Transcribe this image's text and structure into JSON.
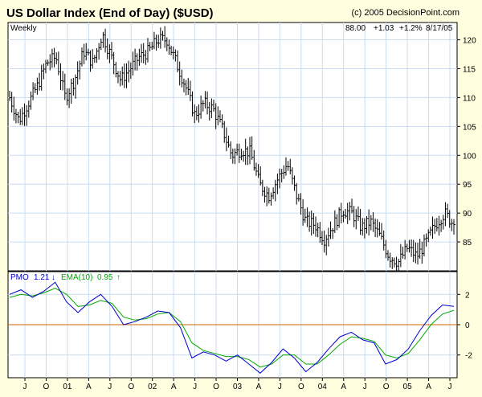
{
  "header": {
    "title": "US Dollar Index (End of Day) ($USD)",
    "credit": "(c) 2005 DecisionPoint.com"
  },
  "price_panel": {
    "period_label": "Weekly",
    "last": "88.00",
    "change": "+1.03",
    "change_pct": "+1.2%",
    "date": "8/17/05"
  },
  "pmo_panel": {
    "pmo_label": "PMO",
    "pmo_value": "1.21",
    "pmo_arrow": "↓",
    "ema_label": "EMA(10)",
    "ema_value": "0.95",
    "ema_arrow": "↑"
  },
  "colors": {
    "background": "#ffffe0",
    "plot_bg": "#ffffff",
    "grid": "#c8dcf0",
    "bars": "#000000",
    "pmo": "#0000cc",
    "ema": "#00aa00",
    "zero": "#cc6600",
    "arrow_down": "#0000cc",
    "arrow_up": "#00aa00"
  },
  "chart_data": [
    {
      "type": "bar",
      "style": "ohlc-weekly",
      "x_ticks": [
        "J",
        "O",
        "01",
        "A",
        "J",
        "O",
        "02",
        "A",
        "J",
        "O",
        "03",
        "A",
        "J",
        "O",
        "04",
        "A",
        "J",
        "O",
        "05",
        "A",
        "J"
      ],
      "y_ticks": [
        85,
        90,
        95,
        100,
        105,
        110,
        115,
        120
      ],
      "ylim": [
        80,
        123
      ],
      "grid": true,
      "series": [
        {
          "closes_by_month_approx": [
            110.0,
            106.0,
            109.0,
            112.0,
            116.0,
            117.0,
            110.0,
            113.0,
            118.0,
            116.0,
            121.0,
            117.0,
            113.0,
            115.0,
            117.0,
            118.0,
            120.0,
            120.0,
            116.0,
            112.0,
            107.0,
            109.0,
            108.0,
            104.5,
            100.0,
            101.0,
            100.5,
            95.0,
            93.0,
            96.0,
            98.5,
            93.0,
            88.5,
            88.0,
            85.5,
            88.0,
            90.5,
            90.0,
            87.5,
            88.5,
            86.0,
            82.5,
            81.5,
            84.0,
            82.5,
            85.0,
            88.0,
            90.0,
            88.0
          ],
          "last_close": 88.0
        }
      ]
    },
    {
      "type": "line",
      "x_ticks": [
        "J",
        "O",
        "01",
        "A",
        "J",
        "O",
        "02",
        "A",
        "J",
        "O",
        "03",
        "A",
        "J",
        "O",
        "04",
        "A",
        "J",
        "O",
        "05",
        "A",
        "J"
      ],
      "y_ticks": [
        -2,
        0,
        2
      ],
      "ylim": [
        -3.5,
        3.5
      ],
      "reference_line": 0,
      "series": [
        {
          "name": "PMO",
          "values": [
            2.0,
            2.3,
            1.8,
            2.2,
            2.8,
            1.5,
            0.8,
            1.5,
            2.0,
            1.2,
            0.0,
            0.2,
            0.5,
            0.9,
            0.8,
            -0.2,
            -2.2,
            -1.8,
            -2.0,
            -2.4,
            -2.0,
            -2.6,
            -3.2,
            -2.5,
            -1.6,
            -2.2,
            -3.1,
            -2.5,
            -1.6,
            -0.8,
            -0.5,
            -1.0,
            -1.2,
            -2.6,
            -2.3,
            -1.6,
            -0.4,
            0.6,
            1.3,
            1.21
          ]
        },
        {
          "name": "EMA(10)",
          "values": [
            1.8,
            2.0,
            1.9,
            2.1,
            2.4,
            2.0,
            1.2,
            1.3,
            1.6,
            1.4,
            0.5,
            0.3,
            0.4,
            0.7,
            0.8,
            0.2,
            -1.2,
            -1.7,
            -1.9,
            -2.1,
            -2.1,
            -2.3,
            -2.8,
            -2.6,
            -2.0,
            -2.0,
            -2.6,
            -2.6,
            -2.0,
            -1.3,
            -0.8,
            -0.9,
            -1.1,
            -2.0,
            -2.2,
            -1.9,
            -1.0,
            0.0,
            0.7,
            0.95
          ]
        }
      ]
    }
  ]
}
